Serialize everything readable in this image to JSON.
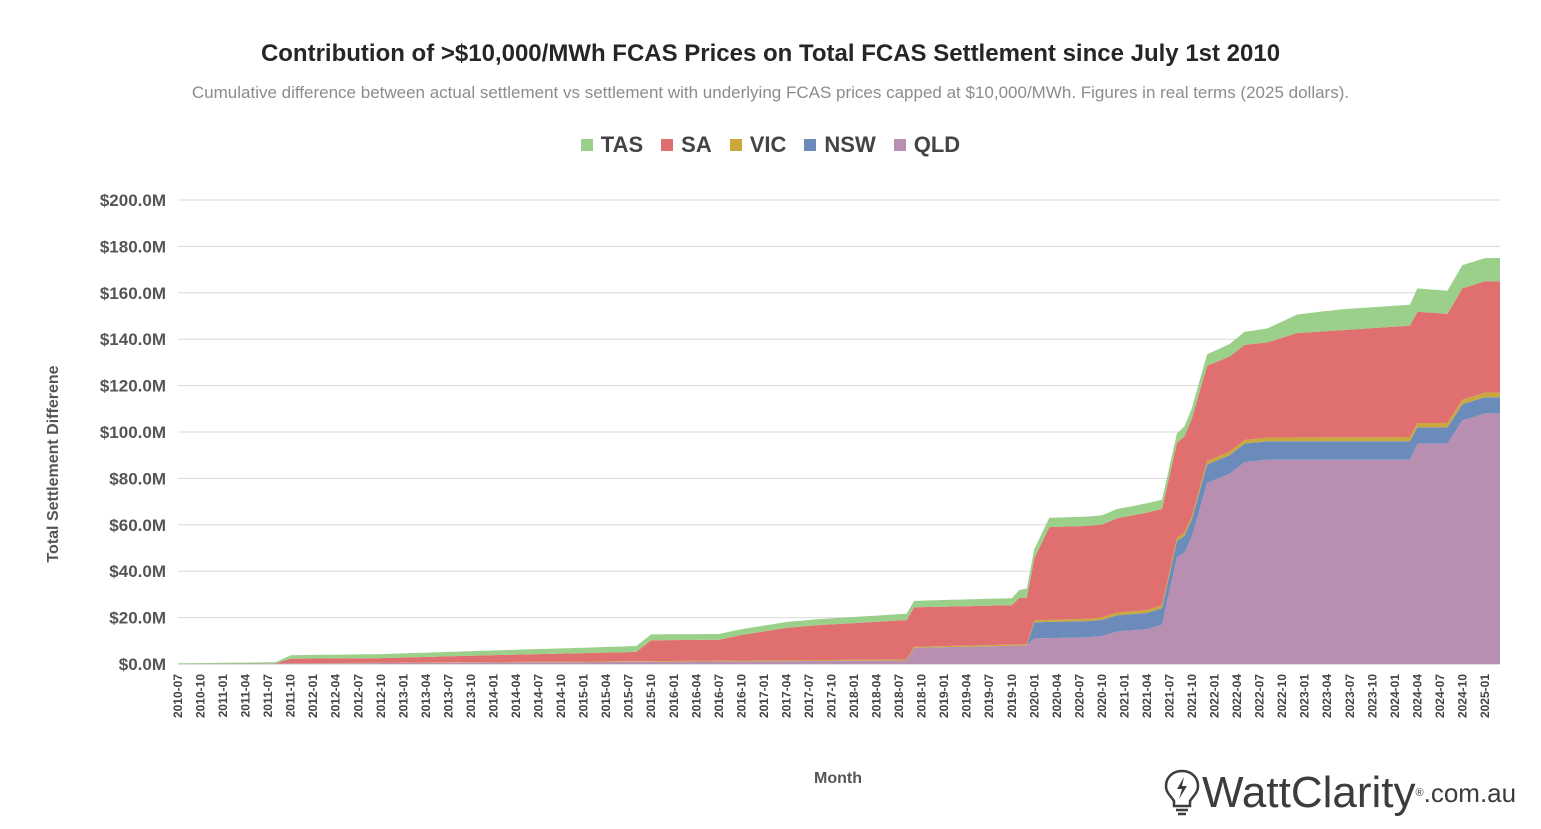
{
  "header": {
    "title": "Contribution of >$10,000/MWh FCAS Prices on Total FCAS Settlement since July 1st 2010",
    "subtitle": "Cumulative difference between actual settlement vs settlement with underlying FCAS prices capped at $10,000/MWh. Figures in real terms (2025 dollars)."
  },
  "logo": {
    "text": "WattClarity",
    "reg": "®",
    "domain": ".com.au"
  },
  "chart_data": {
    "type": "area",
    "stacked": true,
    "xlabel": "Month",
    "ylabel": "Total Settlement Differene",
    "ylim": [
      0,
      200
    ],
    "yticks": [
      "$0.0M",
      "$20.0M",
      "$40.0M",
      "$60.0M",
      "$80.0M",
      "$100.0M",
      "$120.0M",
      "$140.0M",
      "$160.0M",
      "$180.0M",
      "$200.0M"
    ],
    "grid": true,
    "legend_position": "top",
    "x_start": "2010-07",
    "x_end": "2025-03",
    "xtick_labels": [
      "2010-07",
      "2010-10",
      "2011-01",
      "2011-04",
      "2011-07",
      "2011-10",
      "2012-01",
      "2012-04",
      "2012-07",
      "2012-10",
      "2013-01",
      "2013-04",
      "2013-07",
      "2013-10",
      "2014-01",
      "2014-04",
      "2014-07",
      "2014-10",
      "2015-01",
      "2015-04",
      "2015-07",
      "2015-10",
      "2016-01",
      "2016-04",
      "2016-07",
      "2016-10",
      "2017-01",
      "2017-04",
      "2017-07",
      "2017-10",
      "2018-01",
      "2018-04",
      "2018-07",
      "2018-10",
      "2019-01",
      "2019-04",
      "2019-07",
      "2019-10",
      "2020-01",
      "2020-04",
      "2020-07",
      "2020-10",
      "2021-01",
      "2021-04",
      "2021-07",
      "2021-10",
      "2022-01",
      "2022-04",
      "2022-07",
      "2022-10",
      "2023-01",
      "2023-04",
      "2023-07",
      "2023-10",
      "2024-01",
      "2024-04",
      "2024-07",
      "2024-10",
      "2025-01"
    ],
    "legend_order": [
      "TAS",
      "SA",
      "VIC",
      "NSW",
      "QLD"
    ],
    "series": [
      {
        "name": "QLD",
        "color": "#b88fb0",
        "points": [
          [
            "2010-07",
            0
          ],
          [
            "2018-08",
            1.5
          ],
          [
            "2018-09",
            7
          ],
          [
            "2019-12",
            8
          ],
          [
            "2020-01",
            11
          ],
          [
            "2020-08",
            11.5
          ],
          [
            "2020-10",
            12
          ],
          [
            "2020-12",
            14
          ],
          [
            "2021-04",
            15
          ],
          [
            "2021-06",
            17
          ],
          [
            "2021-08",
            46
          ],
          [
            "2021-09",
            48
          ],
          [
            "2021-10",
            55
          ],
          [
            "2021-12",
            78
          ],
          [
            "2022-03",
            82
          ],
          [
            "2022-05",
            87
          ],
          [
            "2022-08",
            88
          ],
          [
            "2024-03",
            88
          ],
          [
            "2024-04",
            95
          ],
          [
            "2024-08",
            95
          ],
          [
            "2024-10",
            105
          ],
          [
            "2025-01",
            108
          ],
          [
            "2025-03",
            108
          ]
        ]
      },
      {
        "name": "NSW",
        "color": "#6b8cba",
        "points": [
          [
            "2010-07",
            0
          ],
          [
            "2019-12",
            0
          ],
          [
            "2020-01",
            7
          ],
          [
            "2020-10",
            7
          ],
          [
            "2020-12",
            7
          ],
          [
            "2021-06",
            7
          ],
          [
            "2021-08",
            7
          ],
          [
            "2021-12",
            8
          ],
          [
            "2022-08",
            8
          ],
          [
            "2024-03",
            8
          ],
          [
            "2024-04",
            7
          ],
          [
            "2024-10",
            7
          ],
          [
            "2025-03",
            7
          ]
        ]
      },
      {
        "name": "VIC",
        "color": "#c9a83d",
        "points": [
          [
            "2010-07",
            0
          ],
          [
            "2019-12",
            0.5
          ],
          [
            "2020-01",
            0.8
          ],
          [
            "2021-12",
            1.5
          ],
          [
            "2025-03",
            2
          ]
        ]
      },
      {
        "name": "SA",
        "color": "#e07070",
        "points": [
          [
            "2010-07",
            0
          ],
          [
            "2011-08",
            0
          ],
          [
            "2011-10",
            2
          ],
          [
            "2012-10",
            2
          ],
          [
            "2014-01",
            3
          ],
          [
            "2015-08",
            4
          ],
          [
            "2015-10",
            9
          ],
          [
            "2016-07",
            9
          ],
          [
            "2016-10",
            11
          ],
          [
            "2017-04",
            14
          ],
          [
            "2017-08",
            15
          ],
          [
            "2018-08",
            17
          ],
          [
            "2018-09",
            17
          ],
          [
            "2019-10",
            17
          ],
          [
            "2019-11",
            20
          ],
          [
            "2019-12",
            20
          ],
          [
            "2020-03",
            40
          ],
          [
            "2020-10",
            40
          ],
          [
            "2021-04",
            42
          ],
          [
            "2021-08",
            41
          ],
          [
            "2021-10",
            42
          ],
          [
            "2021-12",
            41
          ],
          [
            "2022-03",
            41
          ],
          [
            "2022-08",
            41
          ],
          [
            "2022-12",
            45
          ],
          [
            "2024-03",
            48
          ],
          [
            "2024-04",
            48
          ],
          [
            "2024-08",
            47
          ],
          [
            "2024-10",
            48
          ],
          [
            "2025-03",
            48
          ]
        ]
      },
      {
        "name": "TAS",
        "color": "#9ad08a",
        "points": [
          [
            "2010-07",
            0.3
          ],
          [
            "2011-08",
            0.5
          ],
          [
            "2011-10",
            1.5
          ],
          [
            "2014-01",
            2
          ],
          [
            "2015-08",
            2.5
          ],
          [
            "2015-10",
            2.5
          ],
          [
            "2017-04",
            2.5
          ],
          [
            "2019-10",
            3
          ],
          [
            "2019-12",
            4
          ],
          [
            "2020-03",
            4
          ],
          [
            "2021-04",
            4
          ],
          [
            "2021-08",
            4
          ],
          [
            "2021-12",
            5
          ],
          [
            "2022-08",
            6
          ],
          [
            "2022-12",
            8
          ],
          [
            "2023-06",
            9
          ],
          [
            "2024-03",
            9
          ],
          [
            "2024-04",
            10
          ],
          [
            "2024-08",
            10
          ],
          [
            "2024-10",
            10
          ],
          [
            "2025-03",
            10
          ]
        ]
      }
    ]
  }
}
